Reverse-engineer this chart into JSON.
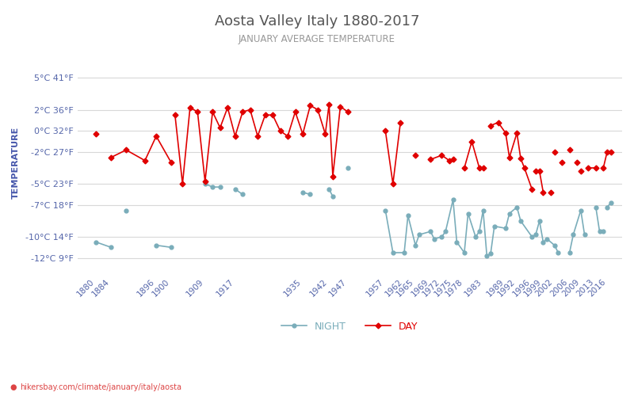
{
  "title": "Aosta Valley Italy 1880-2017",
  "subtitle": "JANUARY AVERAGE TEMPERATURE",
  "ylabel": "TEMPERATURE",
  "watermark": "hikersbay.com/climate/january/italy/aosta",
  "legend_night": "NIGHT",
  "legend_day": "DAY",
  "night_color": "#7aadba",
  "day_color": "#e00000",
  "background_color": "#ffffff",
  "grid_color": "#d8d8d8",
  "title_color": "#555555",
  "subtitle_color": "#999999",
  "ylabel_color": "#4455aa",
  "tick_label_color": "#5566aa",
  "ytick_labels": [
    "5°C 41°F",
    "2°C 36°F",
    "0°C 32°F",
    "-2°C 27°F",
    "-5°C 23°F",
    "-7°C 18°F",
    "-10°C 14°F",
    "-12°C 9°F"
  ],
  "ytick_values": [
    5,
    2,
    0,
    -2,
    -5,
    -7,
    -10,
    -12
  ],
  "xtick_labels": [
    "1880",
    "1884",
    "1896",
    "1900",
    "1909",
    "1917",
    "1935",
    "1942",
    "1947",
    "1957",
    "1962",
    "1965",
    "1969",
    "1972",
    "1975",
    "1978",
    "1983",
    "1989",
    "1992",
    "1996",
    "1999",
    "2002",
    "2006",
    "2009",
    "2013",
    "2016"
  ],
  "day_segments": [
    [
      [
        1880,
        -0.3
      ]
    ],
    [
      [
        1884,
        -2.5
      ],
      [
        1888,
        -1.8
      ],
      [
        1893,
        -2.8
      ],
      [
        1896,
        -0.5
      ],
      [
        1900,
        -3.0
      ]
    ],
    [
      [
        1901,
        1.5
      ],
      [
        1903,
        -5.0
      ],
      [
        1905,
        2.2
      ],
      [
        1907,
        1.8
      ],
      [
        1909,
        -4.8
      ],
      [
        1911,
        1.8
      ],
      [
        1913,
        0.3
      ],
      [
        1915,
        2.2
      ],
      [
        1917,
        -0.5
      ],
      [
        1919,
        1.8
      ],
      [
        1921,
        2.0
      ],
      [
        1923,
        -0.5
      ],
      [
        1925,
        1.5
      ],
      [
        1927,
        1.5
      ],
      [
        1929,
        0.0
      ],
      [
        1931,
        -0.5
      ],
      [
        1933,
        1.8
      ],
      [
        1935,
        -0.3
      ],
      [
        1937,
        2.4
      ],
      [
        1939,
        2.0
      ],
      [
        1941,
        -0.3
      ],
      [
        1942,
        2.5
      ],
      [
        1943,
        -4.3
      ],
      [
        1945,
        2.3
      ],
      [
        1947,
        1.8
      ]
    ],
    [
      [
        1957,
        0.0
      ],
      [
        1959,
        -5.0
      ],
      [
        1961,
        0.8
      ]
    ],
    [
      [
        1965,
        -2.3
      ]
    ],
    [
      [
        1969,
        -2.7
      ],
      [
        1972,
        -2.3
      ],
      [
        1974,
        -2.8
      ],
      [
        1975,
        -2.7
      ]
    ],
    [
      [
        1978,
        -3.5
      ],
      [
        1980,
        -1.0
      ],
      [
        1982,
        -3.5
      ],
      [
        1983,
        -3.5
      ]
    ],
    [
      [
        1985,
        0.5
      ],
      [
        1987,
        0.8
      ],
      [
        1989,
        -0.2
      ],
      [
        1990,
        -2.5
      ],
      [
        1992,
        -0.2
      ],
      [
        1993,
        -2.6
      ],
      [
        1994,
        -3.5
      ],
      [
        1996,
        -5.5
      ]
    ],
    [
      [
        1997,
        -3.8
      ],
      [
        1998,
        -3.8
      ],
      [
        1999,
        -5.8
      ]
    ],
    [
      [
        2001,
        -5.8
      ]
    ],
    [
      [
        2002,
        -2.0
      ]
    ],
    [
      [
        2004,
        -3.0
      ]
    ],
    [
      [
        2006,
        -1.8
      ]
    ],
    [
      [
        2008,
        -3.0
      ]
    ],
    [
      [
        2009,
        -3.8
      ]
    ],
    [
      [
        2011,
        -3.5
      ],
      [
        2013,
        -3.5
      ]
    ],
    [
      [
        2015,
        -3.5
      ],
      [
        2016,
        -2.0
      ],
      [
        2017,
        -2.0
      ]
    ]
  ],
  "night_segments": [
    [
      [
        1880,
        -10.5
      ],
      [
        1884,
        -11.0
      ]
    ],
    [
      [
        1888,
        -7.5
      ]
    ],
    [
      [
        1896,
        -10.8
      ],
      [
        1900,
        -11.0
      ]
    ],
    [
      [
        1909,
        -5.0
      ],
      [
        1911,
        -5.3
      ],
      [
        1913,
        -5.3
      ]
    ],
    [
      [
        1917,
        -5.5
      ],
      [
        1919,
        -6.0
      ]
    ],
    [
      [
        1935,
        -5.8
      ],
      [
        1937,
        -6.0
      ]
    ],
    [
      [
        1942,
        -5.5
      ],
      [
        1943,
        -6.2
      ]
    ],
    [
      [
        1947,
        -3.5
      ]
    ],
    [
      [
        1957,
        -7.5
      ],
      [
        1959,
        -11.5
      ],
      [
        1962,
        -11.5
      ],
      [
        1963,
        -8.0
      ],
      [
        1965,
        -10.8
      ],
      [
        1966,
        -9.8
      ],
      [
        1969,
        -9.5
      ],
      [
        1970,
        -10.2
      ],
      [
        1972,
        -10.0
      ],
      [
        1973,
        -9.5
      ],
      [
        1975,
        -6.5
      ],
      [
        1976,
        -10.5
      ],
      [
        1978,
        -11.5
      ],
      [
        1979,
        -7.8
      ],
      [
        1981,
        -10.0
      ],
      [
        1982,
        -9.5
      ],
      [
        1983,
        -7.5
      ],
      [
        1984,
        -11.8
      ],
      [
        1985,
        -11.6
      ],
      [
        1986,
        -9.0
      ],
      [
        1989,
        -9.2
      ],
      [
        1990,
        -7.8
      ],
      [
        1992,
        -7.2
      ],
      [
        1993,
        -8.5
      ],
      [
        1996,
        -10.0
      ],
      [
        1997,
        -9.8
      ],
      [
        1998,
        -8.5
      ],
      [
        1999,
        -10.5
      ],
      [
        2000,
        -10.2
      ],
      [
        2002,
        -10.8
      ],
      [
        2003,
        -11.5
      ]
    ],
    [
      [
        2006,
        -11.5
      ],
      [
        2007,
        -9.8
      ],
      [
        2009,
        -7.5
      ],
      [
        2010,
        -9.8
      ]
    ],
    [
      [
        2013,
        -7.2
      ],
      [
        2014,
        -9.5
      ],
      [
        2015,
        -9.5
      ]
    ],
    [
      [
        2016,
        -7.2
      ],
      [
        2017,
        -6.8
      ]
    ]
  ]
}
